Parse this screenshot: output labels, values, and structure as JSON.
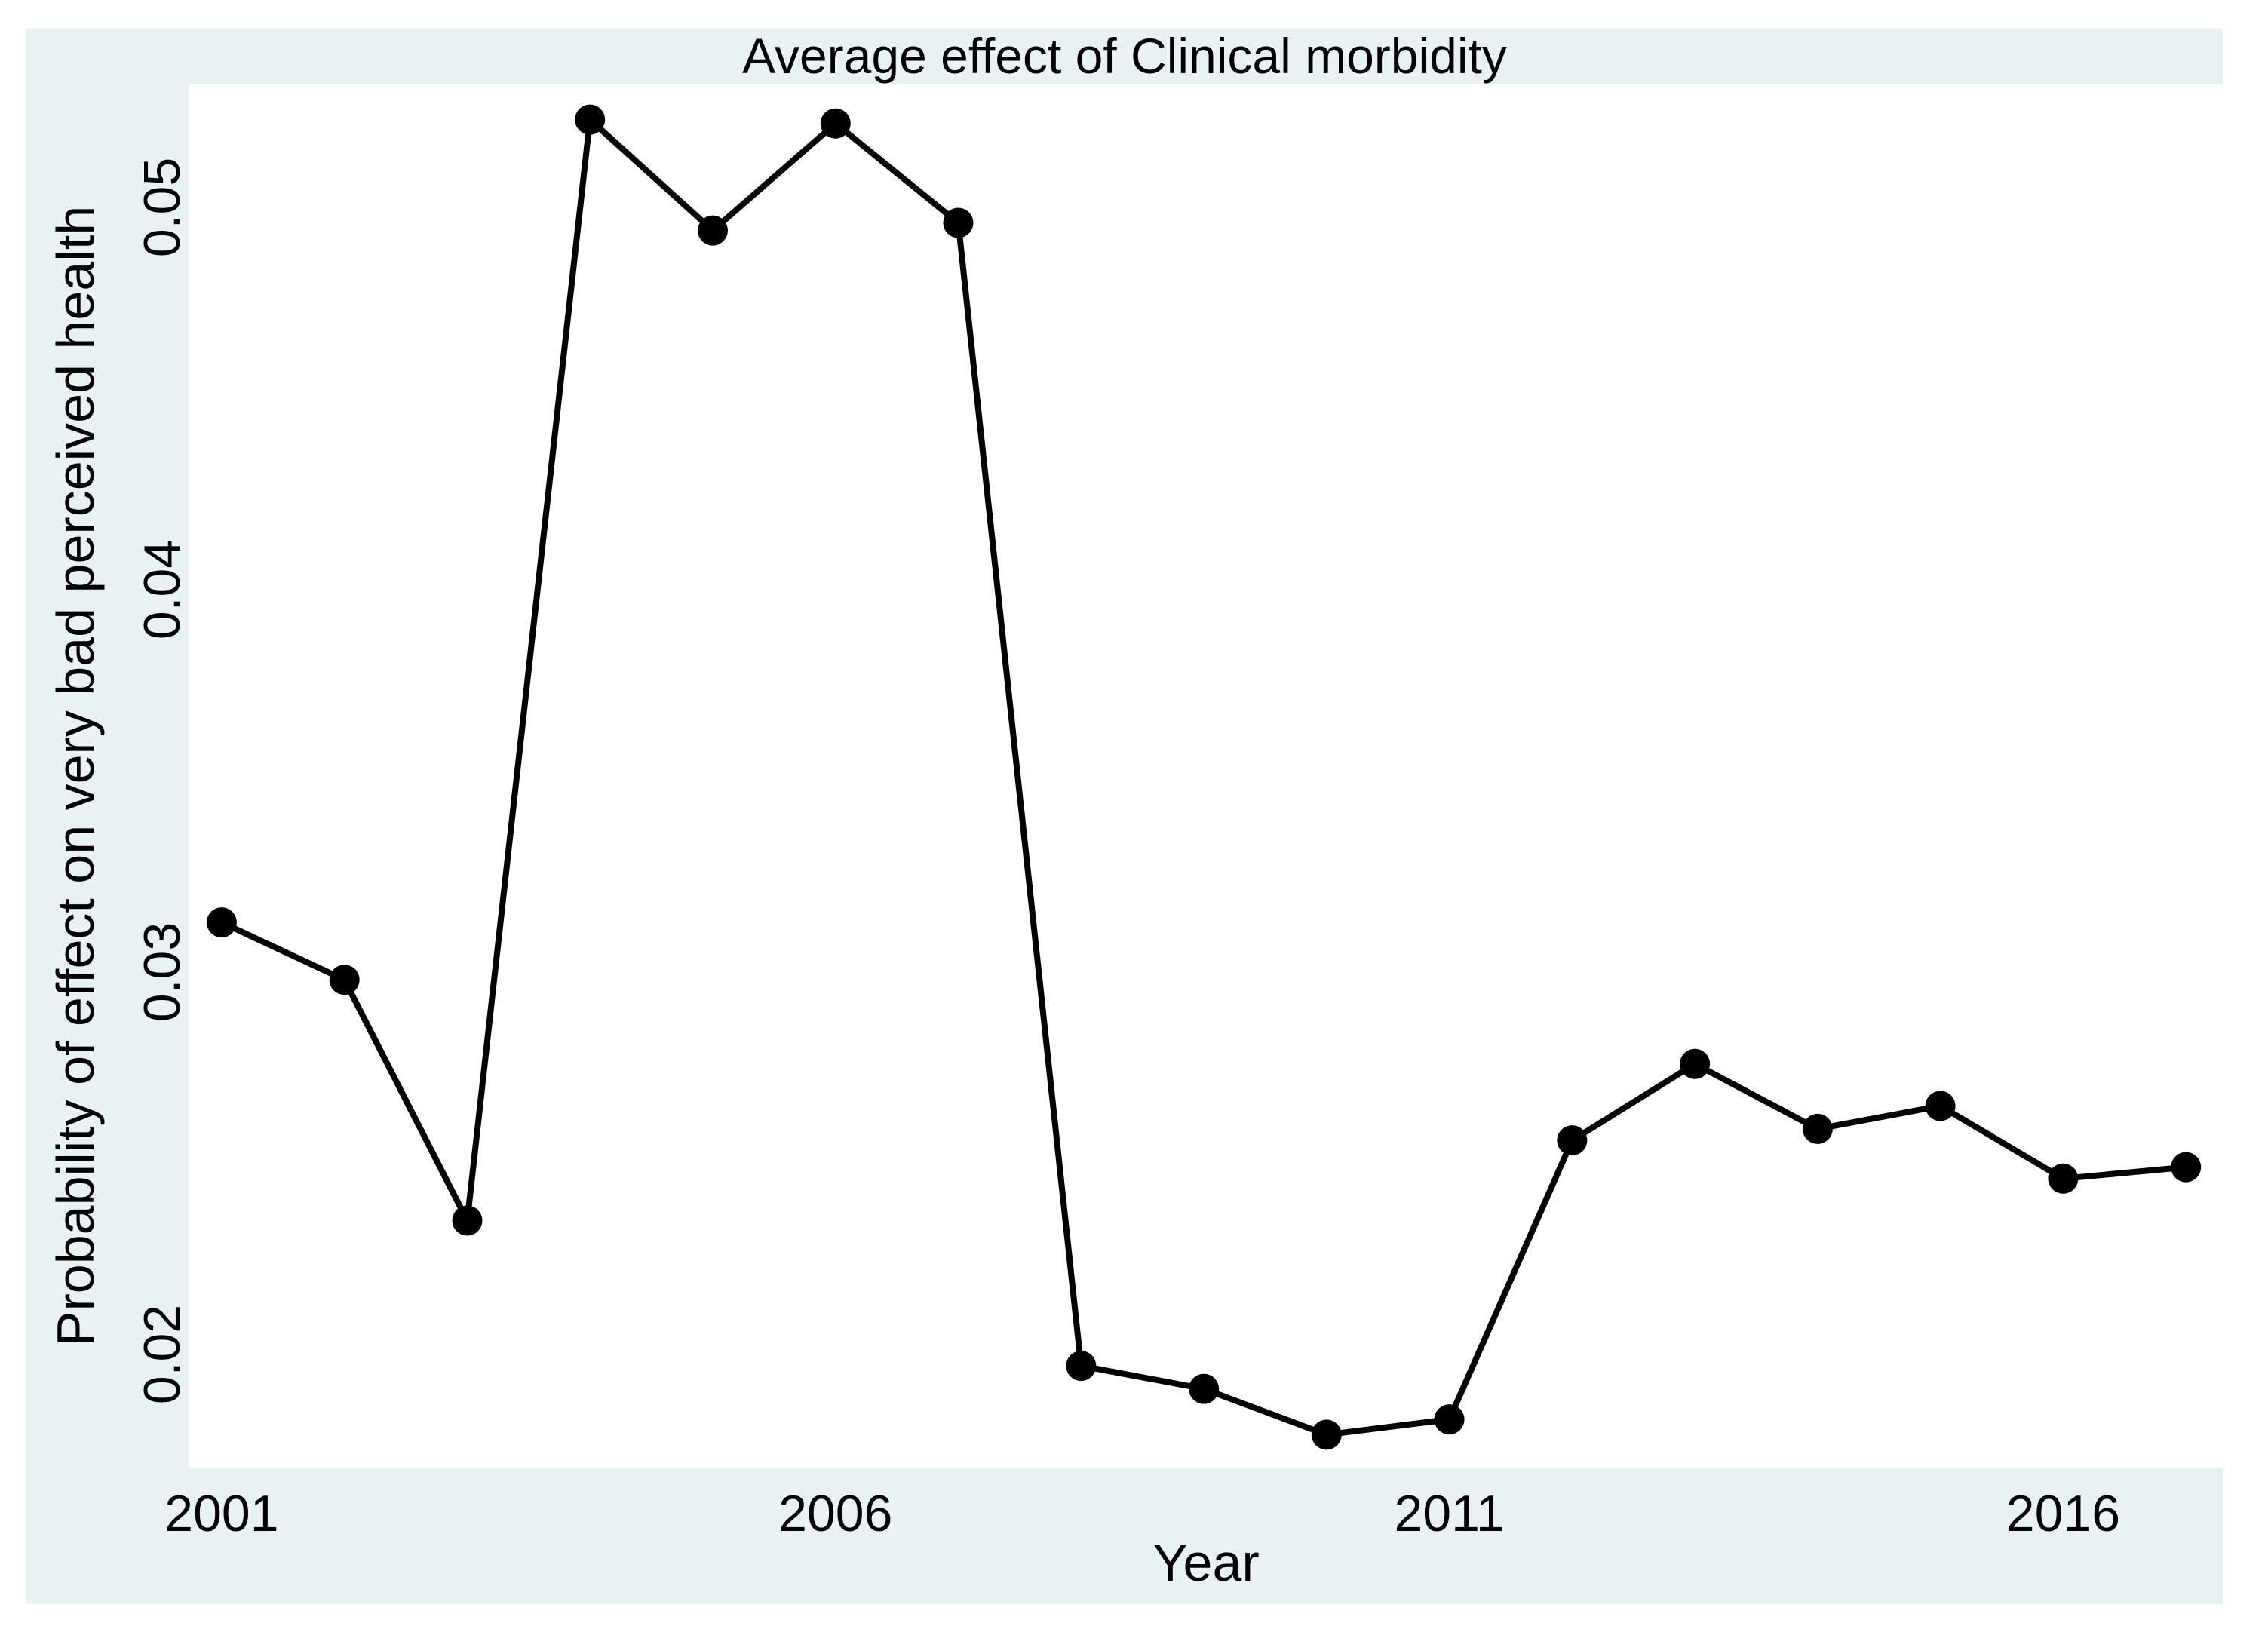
{
  "figure": {
    "background_color": "#E9F2F3",
    "plot_background_color": "#FFFFFF",
    "line_color": "#000000",
    "marker_color": "#000000",
    "text_color": "#000000"
  },
  "chart_data": {
    "type": "line",
    "title": "Average effect of Clinical morbidity",
    "xlabel": "Year",
    "ylabel": "Probability of effect on very bad perceived health",
    "x": [
      2001,
      2002,
      2003,
      2004,
      2005,
      2006,
      2007,
      2008,
      2009,
      2010,
      2011,
      2012,
      2013,
      2014,
      2015,
      2016,
      2017
    ],
    "y": [
      0.0313,
      0.0298,
      0.0235,
      0.0523,
      0.0494,
      0.0522,
      0.0496,
      0.0197,
      0.0191,
      0.0179,
      0.0183,
      0.0256,
      0.0276,
      0.0259,
      0.0265,
      0.0246,
      0.0249
    ],
    "x_ticks": [
      2001,
      2006,
      2011,
      2016
    ],
    "x_tick_labels": [
      "2001",
      "2006",
      "2011",
      "2016"
    ],
    "y_ticks": [
      0.02,
      0.03,
      0.04,
      0.05
    ],
    "y_tick_labels": [
      "0.02",
      "0.03",
      "0.04",
      "0.05"
    ],
    "xlim": [
      2000.73,
      2017.3
    ],
    "ylim": [
      0.01702,
      0.05322
    ],
    "grid": false,
    "legend": "none",
    "marker": "filled-circle"
  }
}
